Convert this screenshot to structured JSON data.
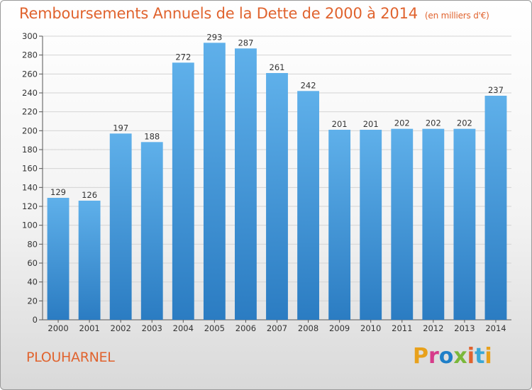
{
  "header": {
    "title": "Remboursements Annuels de la Dette de 2000 à 2014",
    "unit": "(en milliers d'€)"
  },
  "footer": {
    "city": "PLOUHARNEL",
    "logo": "Proxiti",
    "logo_colors": [
      "#e8a11c",
      "#d63b8a",
      "#1f7fc8",
      "#7ab83a",
      "#e0632e",
      "#3aa7d6",
      "#e8a11c"
    ]
  },
  "colors": {
    "bar_top": "#5fb0ea",
    "bar_bottom": "#2b7cc2",
    "title": "#e0632e",
    "grid": "#d4d4d4"
  },
  "chart_data": {
    "type": "bar",
    "title": "Remboursements Annuels de la Dette de 2000 à 2014",
    "xlabel": "",
    "ylabel": "",
    "ylim": [
      0,
      300
    ],
    "ytick_step": 20,
    "grid": true,
    "categories": [
      "2000",
      "2001",
      "2002",
      "2003",
      "2004",
      "2005",
      "2006",
      "2007",
      "2008",
      "2009",
      "2010",
      "2011",
      "2012",
      "2013",
      "2014"
    ],
    "values": [
      129,
      126,
      197,
      188,
      272,
      293,
      287,
      261,
      242,
      201,
      201,
      202,
      202,
      202,
      237
    ]
  }
}
